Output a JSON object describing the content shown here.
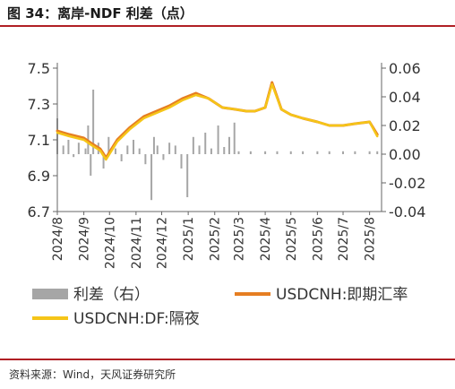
{
  "header": {
    "title": "图 34：离岸-NDF 利差（点）"
  },
  "footer": {
    "source": "资料来源：Wind，天风证券研究所"
  },
  "colors": {
    "spot": "#e67e22",
    "ndf": "#f5c518",
    "spread": "#a6a6a6",
    "axis": "#666666",
    "rule": "#b01f24"
  },
  "chart_data": {
    "type": "line",
    "title": "离岸-NDF 利差（点）",
    "x_axis": {
      "ticks": [
        "2024/8",
        "2024/9",
        "2024/10",
        "2024/11",
        "2024/12",
        "2025/1",
        "2025/2",
        "2025/3",
        "2025/4",
        "2025/5",
        "2025/6",
        "2025/7",
        "2025/8"
      ]
    },
    "y_left": {
      "min": 6.7,
      "max": 7.5,
      "ticks": [
        "6.7",
        "6.9",
        "7.1",
        "7.3",
        "7.5"
      ]
    },
    "y_right": {
      "min": -0.04,
      "max": 0.06,
      "ticks": [
        "-0.04",
        "-0.02",
        "0.00",
        "0.02",
        "0.04",
        "0.06"
      ]
    },
    "legend": {
      "placement": "bottom",
      "items": [
        "利差（右）",
        "USDCNH:即期汇率",
        "USDCNH:DF:隔夜"
      ]
    },
    "series": [
      {
        "name": "USDCNH:即期汇率",
        "axis": "left",
        "type": "line",
        "x": [
          "2024-08-01",
          "2024-08-15",
          "2024-09-01",
          "2024-09-10",
          "2024-09-20",
          "2024-09-27",
          "2024-10-10",
          "2024-10-25",
          "2024-11-10",
          "2024-11-25",
          "2024-12-10",
          "2024-12-25",
          "2025-01-10",
          "2025-01-25",
          "2025-02-10",
          "2025-02-25",
          "2025-03-10",
          "2025-03-20",
          "2025-04-01",
          "2025-04-09",
          "2025-04-20",
          "2025-05-01",
          "2025-05-15",
          "2025-06-01",
          "2025-06-15",
          "2025-07-01",
          "2025-07-15",
          "2025-08-01",
          "2025-08-10"
        ],
        "values": [
          7.15,
          7.13,
          7.11,
          7.08,
          7.05,
          7.0,
          7.1,
          7.17,
          7.23,
          7.26,
          7.29,
          7.33,
          7.36,
          7.33,
          7.28,
          7.27,
          7.26,
          7.26,
          7.28,
          7.42,
          7.27,
          7.24,
          7.22,
          7.2,
          7.18,
          7.18,
          7.19,
          7.2,
          7.13
        ]
      },
      {
        "name": "USDCNH:DF:隔夜",
        "axis": "left",
        "type": "line",
        "x": [
          "2024-08-01",
          "2024-08-15",
          "2024-09-01",
          "2024-09-10",
          "2024-09-20",
          "2024-09-27",
          "2024-10-10",
          "2024-10-25",
          "2024-11-10",
          "2024-11-25",
          "2024-12-10",
          "2024-12-25",
          "2025-01-10",
          "2025-01-25",
          "2025-02-10",
          "2025-02-25",
          "2025-03-10",
          "2025-03-20",
          "2025-04-01",
          "2025-04-09",
          "2025-04-20",
          "2025-05-01",
          "2025-05-15",
          "2025-06-01",
          "2025-06-15",
          "2025-07-01",
          "2025-07-15",
          "2025-08-01",
          "2025-08-10"
        ],
        "values": [
          7.14,
          7.12,
          7.1,
          7.07,
          7.04,
          6.99,
          7.09,
          7.16,
          7.22,
          7.25,
          7.28,
          7.32,
          7.35,
          7.33,
          7.28,
          7.27,
          7.26,
          7.26,
          7.28,
          7.41,
          7.27,
          7.24,
          7.22,
          7.2,
          7.18,
          7.18,
          7.19,
          7.2,
          7.12
        ]
      },
      {
        "name": "利差（右）",
        "axis": "right",
        "type": "bar",
        "x": [
          "2024-08-01",
          "2024-08-08",
          "2024-08-14",
          "2024-08-20",
          "2024-08-26",
          "2024-09-03",
          "2024-09-06",
          "2024-09-09",
          "2024-09-12",
          "2024-09-18",
          "2024-09-24",
          "2024-09-30",
          "2024-10-08",
          "2024-10-15",
          "2024-10-22",
          "2024-10-29",
          "2024-11-05",
          "2024-11-12",
          "2024-11-19",
          "2024-11-22",
          "2024-11-26",
          "2024-12-03",
          "2024-12-10",
          "2024-12-17",
          "2024-12-24",
          "2024-12-31",
          "2025-01-07",
          "2025-01-14",
          "2025-01-21",
          "2025-01-28",
          "2025-02-05",
          "2025-02-12",
          "2025-02-18",
          "2025-02-24",
          "2025-03-01",
          "2025-03-15",
          "2025-04-01",
          "2025-04-15",
          "2025-05-01",
          "2025-05-15",
          "2025-06-01",
          "2025-06-15",
          "2025-07-01",
          "2025-07-15",
          "2025-08-01",
          "2025-08-10"
        ],
        "values": [
          0.025,
          0.006,
          0.01,
          -0.002,
          0.008,
          0.004,
          0.02,
          -0.015,
          0.045,
          0.008,
          -0.01,
          0.012,
          0.004,
          -0.005,
          0.006,
          0.01,
          0.004,
          -0.007,
          -0.032,
          0.012,
          0.006,
          -0.004,
          0.008,
          0.006,
          -0.01,
          -0.03,
          0.012,
          0.006,
          0.015,
          0.004,
          0.02,
          0.005,
          0.012,
          0.022,
          0.002,
          0.002,
          0.002,
          0.002,
          0.002,
          0.002,
          0.002,
          0.002,
          0.002,
          0.002,
          0.002,
          0.002
        ]
      }
    ]
  }
}
